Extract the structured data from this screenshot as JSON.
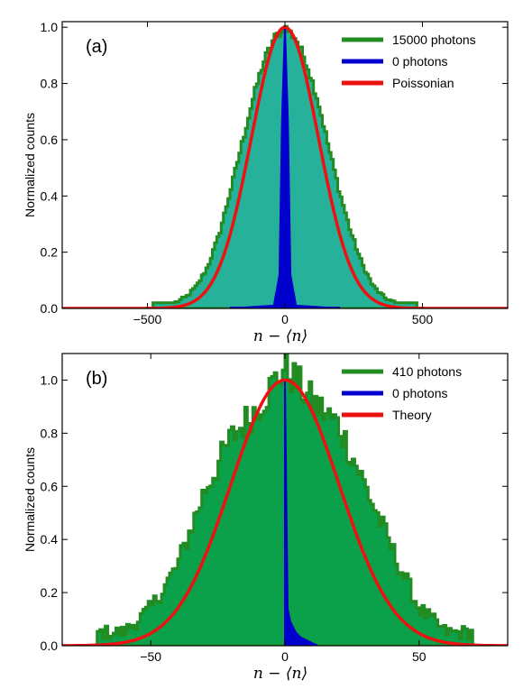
{
  "chart_data": [
    {
      "type": "histogram",
      "panel_label": "(a)",
      "xlabel": "n − ⟨n⟩",
      "ylabel": "Normalized counts",
      "xlim": [
        -810,
        810
      ],
      "ylim": [
        0,
        1.02
      ],
      "xticks": [
        -500,
        0,
        500
      ],
      "xtick_labels": [
        "−500",
        "0",
        "500"
      ],
      "yticks": [
        0.0,
        0.2,
        0.4,
        0.6,
        0.8,
        1.0
      ],
      "ytick_labels": [
        "0.0",
        "0.2",
        "0.4",
        "0.6",
        "0.8",
        "1.0"
      ],
      "legend_position": "top-right",
      "series": [
        {
          "name": "15000 photons",
          "kind": "step-filled",
          "color": "#228b22",
          "fill": "#25b19a",
          "x": [
            -400,
            -360,
            -320,
            -280,
            -240,
            -200,
            -160,
            -120,
            -80,
            -40,
            0,
            40,
            80,
            120,
            160,
            200,
            240,
            280,
            320,
            360,
            400
          ],
          "y": [
            0.02,
            0.04,
            0.08,
            0.15,
            0.26,
            0.41,
            0.57,
            0.73,
            0.87,
            0.96,
            1.0,
            0.96,
            0.87,
            0.74,
            0.57,
            0.41,
            0.27,
            0.16,
            0.08,
            0.04,
            0.02
          ]
        },
        {
          "name": "0 photons",
          "kind": "filled",
          "color": "#0000cc",
          "x": [
            -200,
            -40,
            -20,
            -10,
            0,
            10,
            20,
            40,
            200
          ],
          "y": [
            0.0,
            0.01,
            0.12,
            0.7,
            1.0,
            0.7,
            0.12,
            0.01,
            0.0
          ]
        },
        {
          "name": "Poissonian",
          "kind": "line",
          "color": "#ee1111",
          "mean": 0,
          "sigma": 122,
          "peak": 1.0
        }
      ]
    },
    {
      "type": "histogram",
      "panel_label": "(b)",
      "xlabel": "n − ⟨n⟩",
      "ylabel": "Normalized counts",
      "xlim": [
        -83,
        83
      ],
      "ylim": [
        0,
        1.1
      ],
      "xticks": [
        -50,
        0,
        50
      ],
      "xtick_labels": [
        "−50",
        "0",
        "50"
      ],
      "yticks": [
        0.0,
        0.2,
        0.4,
        0.6,
        0.8,
        1.0
      ],
      "ytick_labels": [
        "0.0",
        "0.2",
        "0.4",
        "0.6",
        "0.8",
        "1.0"
      ],
      "legend_position": "top-right",
      "series": [
        {
          "name": "410 photons",
          "kind": "step-filled",
          "color": "#228b22",
          "fill": "#0aa14a",
          "x": [
            -60,
            -50,
            -40,
            -30,
            -20,
            -10,
            0,
            10,
            20,
            30,
            40,
            50,
            60
          ],
          "y": [
            0.05,
            0.14,
            0.3,
            0.58,
            0.78,
            0.9,
            1.05,
            0.92,
            0.83,
            0.6,
            0.36,
            0.14,
            0.05
          ]
        },
        {
          "name": "0 photons",
          "kind": "filled",
          "color": "#0000cc",
          "x": [
            0,
            1,
            2,
            4,
            6,
            8,
            10,
            12
          ],
          "y": [
            1.0,
            0.14,
            0.09,
            0.05,
            0.03,
            0.02,
            0.01,
            0.0
          ]
        },
        {
          "name": "Theory",
          "kind": "line",
          "color": "#ee1111",
          "mean": 0,
          "sigma": 20.2,
          "peak": 1.0
        }
      ]
    }
  ]
}
